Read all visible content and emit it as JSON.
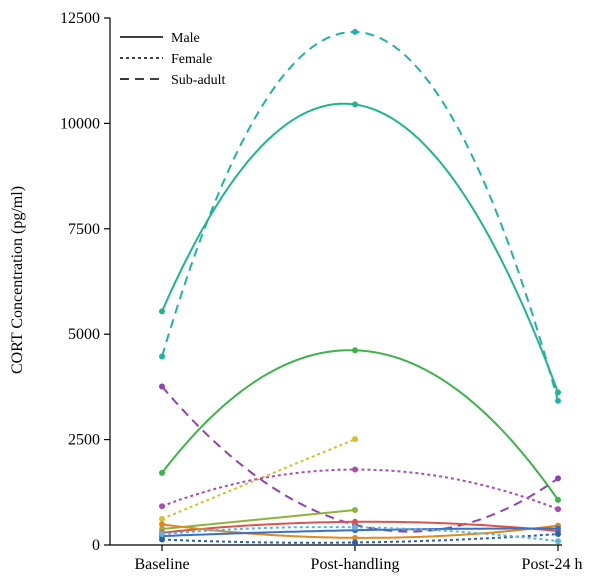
{
  "chart_data": {
    "type": "line",
    "title": "",
    "xlabel": "",
    "ylabel": "CORT Concentration (pg/ml)",
    "categories": [
      "Baseline",
      "Post-handling",
      "Post-24 h"
    ],
    "ylim": [
      0,
      12500
    ],
    "yticks": [
      0,
      2500,
      5000,
      7500,
      10000,
      12500
    ],
    "grid": false,
    "legend": {
      "placement": "top-left",
      "entries": [
        {
          "label": "Male",
          "style": "solid"
        },
        {
          "label": "Female",
          "style": "dotted"
        },
        {
          "label": "Sub-adult",
          "style": "dashed"
        }
      ]
    },
    "series": [
      {
        "group": "Sub-adult",
        "style": "dashed",
        "color": "#20b2aa",
        "values": [
          4470,
          12170,
          3420
        ]
      },
      {
        "group": "Male",
        "style": "solid",
        "color": "#1fb58f",
        "values": [
          5540,
          10450,
          3620
        ]
      },
      {
        "group": "Male",
        "style": "solid",
        "color": "#3cb44b",
        "values": [
          1710,
          4620,
          1070
        ]
      },
      {
        "group": "Sub-adult",
        "style": "dashed",
        "color": "#8e44ad",
        "values": [
          3760,
          480,
          1580
        ]
      },
      {
        "group": "Female",
        "style": "dotted",
        "color": "#d4c12a",
        "values": [
          620,
          2510,
          null
        ]
      },
      {
        "group": "Female",
        "style": "dotted",
        "color": "#a64fb0",
        "values": [
          920,
          1790,
          850
        ]
      },
      {
        "group": "Male",
        "style": "solid",
        "color": "#8fb23a",
        "values": [
          380,
          830,
          null
        ]
      },
      {
        "group": "Male",
        "style": "solid",
        "color": "#d9534f",
        "values": [
          290,
          550,
          330
        ]
      },
      {
        "group": "Male",
        "style": "solid",
        "color": "#e08a1e",
        "values": [
          490,
          170,
          460
        ]
      },
      {
        "group": "Male",
        "style": "solid",
        "color": "#3a6fc9",
        "values": [
          210,
          350,
          390
        ]
      },
      {
        "group": "Female",
        "style": "dotted",
        "color": "#2a5db0",
        "values": [
          130,
          60,
          260
        ]
      },
      {
        "group": "Female",
        "style": "dotted",
        "color": "#5ab4d6",
        "values": [
          260,
          420,
          90
        ]
      }
    ]
  }
}
